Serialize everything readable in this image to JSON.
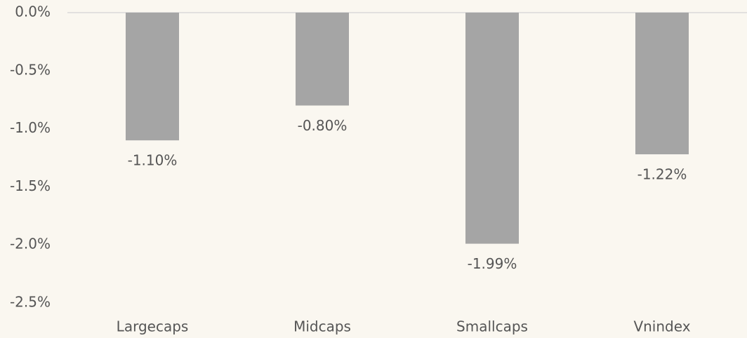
{
  "chart_data": {
    "type": "bar",
    "categories": [
      "Largecaps",
      "Midcaps",
      "Smallcaps",
      "Vnindex"
    ],
    "values": [
      -1.1,
      -0.8,
      -1.99,
      -1.22
    ],
    "value_labels": [
      "-1.10%",
      "-0.80%",
      "-1.99%",
      "-1.22%"
    ],
    "color": "#a5a5a5",
    "ylim": [
      -2.5,
      0
    ],
    "yticks": [
      {
        "value": 0,
        "label": "0.0%"
      },
      {
        "value": -0.5,
        "label": "-0.5%"
      },
      {
        "value": -1,
        "label": "-1.0%"
      },
      {
        "value": -1.5,
        "label": "-1.5%"
      },
      {
        "value": -2,
        "label": "-2.0%"
      },
      {
        "value": -2.5,
        "label": "-2.5%"
      }
    ],
    "grid": false
  }
}
